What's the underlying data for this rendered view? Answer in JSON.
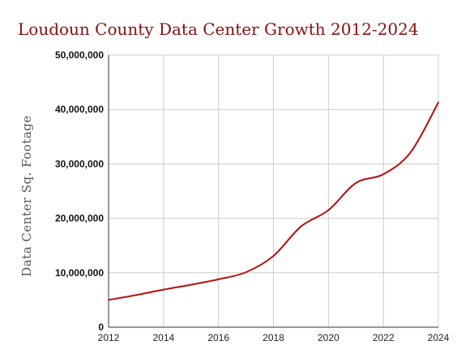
{
  "colors": {
    "line": "#b30f0f",
    "title": "#8b0f0f",
    "grid": "#cccccc"
  },
  "chart_data": {
    "type": "line",
    "title": "Loudoun County Data Center Growth 2012-2024",
    "xlabel": "",
    "ylabel": "Data Center Sq. Footage",
    "xlim": [
      2012,
      2024
    ],
    "ylim": [
      0,
      50000000
    ],
    "x_ticks": [
      "2012",
      "2014",
      "2016",
      "2018",
      "2020",
      "2022",
      "2024"
    ],
    "y_ticks": [
      "0",
      "10,000,000",
      "20,000,000",
      "30,000,000",
      "40,000,000",
      "50,000,000"
    ],
    "grid": true,
    "legend": "none",
    "series": [
      {
        "x": [
          2012,
          2013,
          2014,
          2015,
          2016,
          2017,
          2018,
          2019,
          2020,
          2021,
          2022,
          2023,
          2024
        ],
        "values": [
          5000000,
          5900000,
          6900000,
          7800000,
          8800000,
          10100000,
          13100000,
          18500000,
          21500000,
          26500000,
          28100000,
          32200000,
          41300000
        ]
      }
    ]
  }
}
